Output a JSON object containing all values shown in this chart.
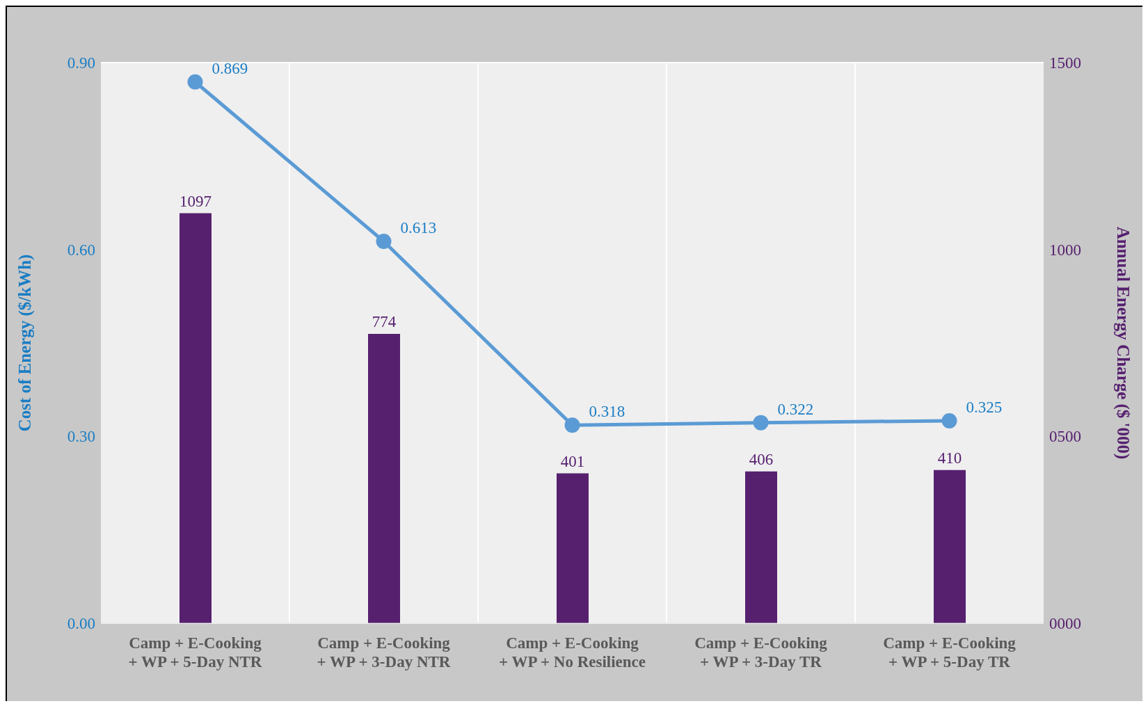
{
  "chart_data": {
    "type": "bar",
    "categories": [
      "Camp + E-Cooking\n+ WP + 5-Day NTR",
      "Camp + E-Cooking\n+ WP + 3-Day NTR",
      "Camp + E-Cooking\n+ WP + No Resilience",
      "Camp + E-Cooking\n+ WP + 3-Day TR",
      "Camp + E-Cooking\n+ WP + 5-Day TR"
    ],
    "series": [
      {
        "axis": "y2",
        "color": "#56206f",
        "values": [
          1097,
          774,
          401,
          406,
          410
        ]
      },
      {
        "type": "line",
        "axis": "y",
        "color": "#5b9bd5",
        "values": [
          0.869,
          0.613,
          0.318,
          0.322,
          0.325
        ]
      }
    ],
    "ylabel": "Cost of Energy ($/kWh)",
    "y2label": "Annual Energy Charge ($ '000)",
    "ylim": [
      0,
      0.9
    ],
    "yticks": [
      {
        "value": 0,
        "label": "0.00"
      },
      {
        "value": 0.3,
        "label": "0.30"
      },
      {
        "value": 0.6,
        "label": "0.60"
      },
      {
        "value": 0.9,
        "label": "0.90"
      }
    ],
    "y2lim": [
      0,
      1500
    ],
    "y2ticks": [
      {
        "value": 0,
        "label": "0000"
      },
      {
        "value": 500,
        "label": "0500"
      },
      {
        "value": 1000,
        "label": "1000"
      },
      {
        "value": 1500,
        "label": "1500"
      }
    ],
    "grid": true,
    "legend": false,
    "marker": "circle",
    "line_style": "solid",
    "data_labels": true
  }
}
